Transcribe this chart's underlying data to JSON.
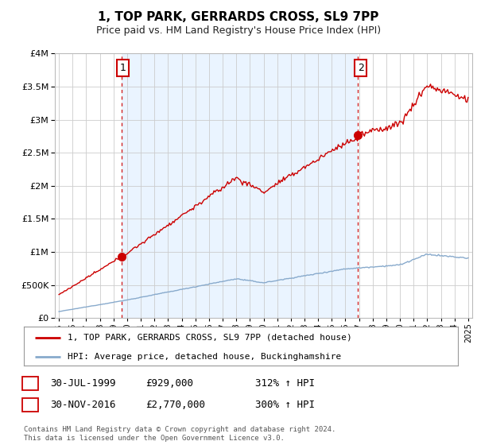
{
  "title": "1, TOP PARK, GERRARDS CROSS, SL9 7PP",
  "subtitle": "Price paid vs. HM Land Registry's House Price Index (HPI)",
  "legend_line1": "1, TOP PARK, GERRARDS CROSS, SL9 7PP (detached house)",
  "legend_line2": "HPI: Average price, detached house, Buckinghamshire",
  "transaction1_date": "30-JUL-1999",
  "transaction1_price": 929000,
  "transaction1_year": 1999.583,
  "transaction1_hpi": "312% ↑ HPI",
  "transaction2_date": "30-NOV-2016",
  "transaction2_price": 2770000,
  "transaction2_year": 2016.917,
  "transaction2_hpi": "300% ↑ HPI",
  "footer": "Contains HM Land Registry data © Crown copyright and database right 2024.\nThis data is licensed under the Open Government Licence v3.0.",
  "ylim": [
    0,
    4000000
  ],
  "xlim_left": 1994.7,
  "xlim_right": 2025.3,
  "background_color": "#ffffff",
  "shade_color": "#ddeeff",
  "grid_color": "#cccccc",
  "red_color": "#cc0000",
  "blue_color": "#88aacc",
  "label_box_color": "#cc0000"
}
